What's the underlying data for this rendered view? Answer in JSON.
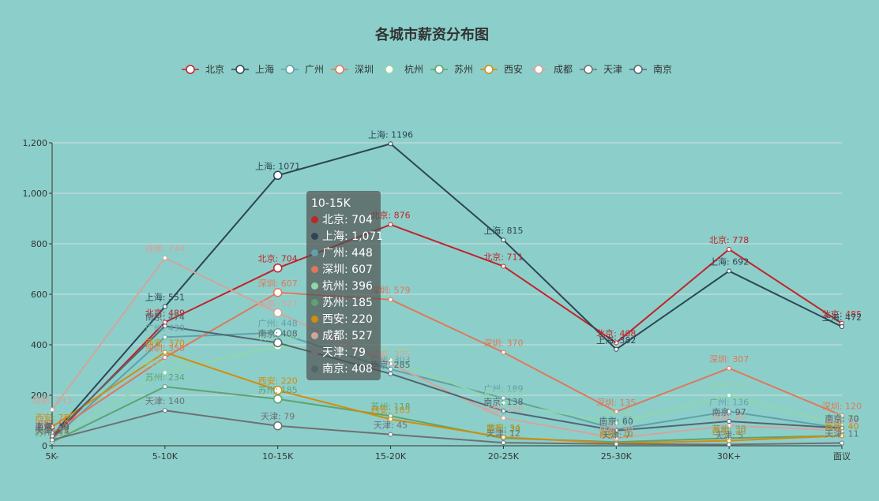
{
  "chart_data": {
    "type": "line",
    "title": "各城市薪资分布图",
    "categories": [
      "5K-",
      "5-10K",
      "10-15K",
      "15-20K",
      "20-25K",
      "25-30K",
      "30K+",
      "面议"
    ],
    "ylim": [
      0,
      1200
    ],
    "yticks": [
      "0",
      "200",
      "400",
      "600",
      "800",
      "1,000",
      "1,200"
    ],
    "ytick_values": [
      0,
      200,
      400,
      600,
      800,
      1000,
      1200
    ],
    "grid": true,
    "legend": "top-center",
    "series": [
      {
        "name": "北京",
        "color": "#c1232b",
        "values": [
          30,
          489,
          704,
          876,
          711,
          408,
          778,
          485
        ]
      },
      {
        "name": "上海",
        "color": "#2f4554",
        "values": [
          40,
          551,
          1071,
          1196,
          815,
          382,
          692,
          472
        ]
      },
      {
        "name": "广州",
        "color": "#61a0a8",
        "values": [
          25,
          430,
          448,
          303,
          189,
          65,
          136,
          69
        ]
      },
      {
        "name": "深圳",
        "color": "#e0775a",
        "values": [
          50,
          350,
          607,
          579,
          370,
          135,
          307,
          120
        ]
      },
      {
        "name": "杭州",
        "color": "#91d5a8",
        "values": [
          20,
          290,
          396,
          340,
          170,
          90,
          200,
          80
        ]
      },
      {
        "name": "苏州",
        "color": "#5fa370",
        "values": [
          15,
          234,
          185,
          118,
          30,
          15,
          30,
          40
        ]
      },
      {
        "name": "西安",
        "color": "#d48c0a",
        "values": [
          75,
          370,
          220,
          105,
          34,
          10,
          20,
          40
        ]
      },
      {
        "name": "成都",
        "color": "#d3a49c",
        "values": [
          143,
          744,
          527,
          325,
          110,
          30,
          80,
          60
        ]
      },
      {
        "name": "天津",
        "color": "#6e7074",
        "values": [
          23,
          140,
          79,
          45,
          12,
          7,
          5,
          11
        ]
      },
      {
        "name": "南京",
        "color": "#546570",
        "values": [
          39,
          474,
          408,
          285,
          138,
          60,
          97,
          70
        ]
      }
    ],
    "tooltip": {
      "category": "10-15K",
      "rows": [
        {
          "name": "北京",
          "value": "704",
          "color": "#c1232b"
        },
        {
          "name": "上海",
          "value": "1,071",
          "color": "#2f4554"
        },
        {
          "name": "广州",
          "value": "448",
          "color": "#61a0a8"
        },
        {
          "name": "深圳",
          "value": "607",
          "color": "#e0775a"
        },
        {
          "name": "杭州",
          "value": "396",
          "color": "#91d5a8"
        },
        {
          "name": "苏州",
          "value": "185",
          "color": "#5fa370"
        },
        {
          "name": "西安",
          "value": "220",
          "color": "#d48c0a"
        },
        {
          "name": "成都",
          "value": "527",
          "color": "#d3a49c"
        },
        {
          "name": "天津",
          "value": "79",
          "color": "#6e7074"
        },
        {
          "name": "南京",
          "value": "408",
          "color": "#546570"
        }
      ]
    }
  }
}
